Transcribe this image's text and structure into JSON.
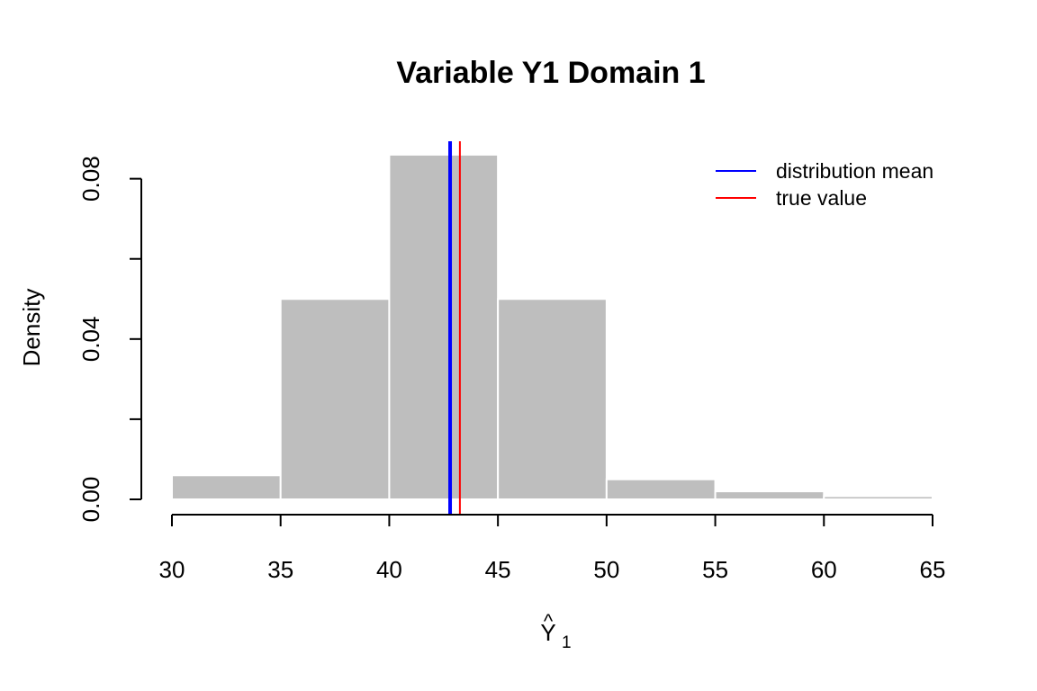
{
  "chart_data": {
    "type": "bar",
    "title": "Variable Y1 Domain 1",
    "xlabel_base": "Y",
    "xlabel_hat": "^",
    "xlabel_subscript": "1",
    "ylabel": "Density",
    "bins": [
      {
        "from": 30,
        "to": 35,
        "density": 0.006
      },
      {
        "from": 35,
        "to": 40,
        "density": 0.05
      },
      {
        "from": 40,
        "to": 45,
        "density": 0.086
      },
      {
        "from": 45,
        "to": 50,
        "density": 0.05
      },
      {
        "from": 50,
        "to": 55,
        "density": 0.005
      },
      {
        "from": 55,
        "to": 60,
        "density": 0.002
      },
      {
        "from": 60,
        "to": 65,
        "density": 0.0008
      }
    ],
    "xlim": [
      30,
      65
    ],
    "ylim": [
      0,
      0.088
    ],
    "x_ticks": [
      30,
      35,
      40,
      45,
      50,
      55,
      60,
      65
    ],
    "x_tick_labels": [
      "30",
      "35",
      "40",
      "45",
      "50",
      "55",
      "60",
      "65"
    ],
    "y_ticks": [
      0,
      0.02,
      0.04,
      0.06,
      0.08
    ],
    "y_tick_labels": [
      "0.00",
      "",
      "0.04",
      "",
      "0.08"
    ],
    "bar_color": "#bebebe",
    "bar_border": "#ffffff",
    "reference_lines": [
      {
        "name": "distribution mean",
        "value": 42.8,
        "color": "#0000ff"
      },
      {
        "name": "true value",
        "value": 43.25,
        "color": "#ff0000"
      }
    ],
    "legend": {
      "position": "top-right",
      "entries": [
        {
          "label": "distribution mean",
          "color": "#0000ff"
        },
        {
          "label": "true value",
          "color": "#ff0000"
        }
      ]
    },
    "grid": false
  }
}
